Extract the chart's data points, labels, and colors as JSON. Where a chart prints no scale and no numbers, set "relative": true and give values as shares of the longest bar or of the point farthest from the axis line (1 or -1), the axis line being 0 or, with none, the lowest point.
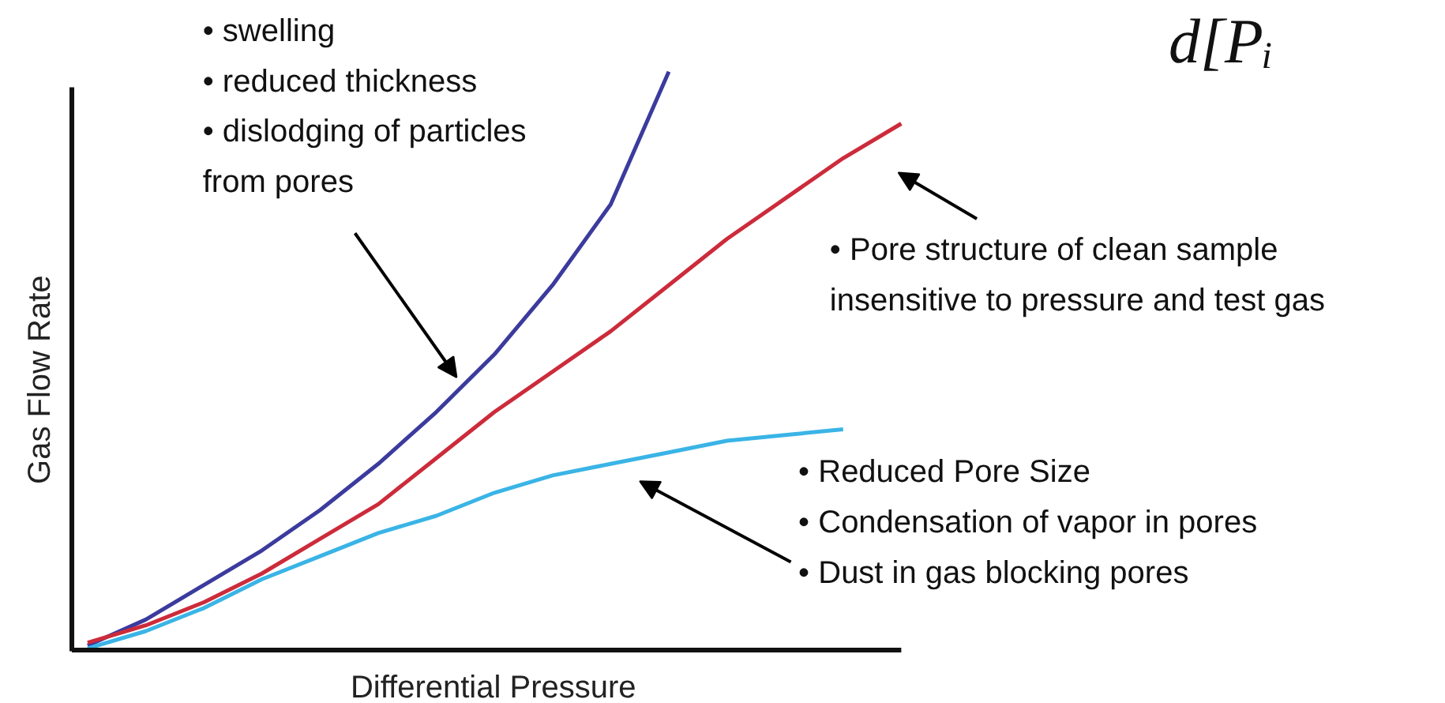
{
  "chart_data": {
    "type": "line",
    "relative": true,
    "xlabel": "Differential Pressure",
    "ylabel": "Gas Flow Rate",
    "categories": [
      null,
      null,
      null,
      null,
      null,
      null,
      null,
      null,
      null,
      null,
      null,
      null,
      null,
      null,
      null
    ],
    "series": [
      {
        "color": "#3b3b9e",
        "values": [
          0.005,
          0.05,
          0.11,
          0.17,
          0.24,
          0.32,
          0.41,
          0.51,
          0.63,
          0.77,
          1.0,
          null,
          null,
          null,
          null
        ]
      },
      {
        "color": "#cc2b3b",
        "values": [
          0.01,
          0.04,
          0.08,
          0.13,
          0.19,
          0.25,
          0.33,
          0.41,
          0.48,
          0.55,
          0.63,
          0.71,
          0.78,
          0.85,
          0.91
        ]
      },
      {
        "color": "#3ab4e6",
        "values": [
          0,
          0.03,
          0.07,
          0.12,
          0.16,
          0.2,
          0.23,
          0.27,
          0.3,
          0.32,
          0.34,
          0.36,
          0.37,
          0.38,
          null
        ]
      }
    ],
    "annotations": [
      "• swelling\n• reduced thickness\n• dislodging of particles\n  from pores",
      "• Pore structure of clean sample\ninsensitive to pressure and test gas",
      "• Reduced Pore Size\n• Condensation of vapor in pores\n• Dust in gas blocking pores",
      "d[Pᵢ"
    ],
    "grid": false,
    "line_style": "solid",
    "marker": "none"
  }
}
